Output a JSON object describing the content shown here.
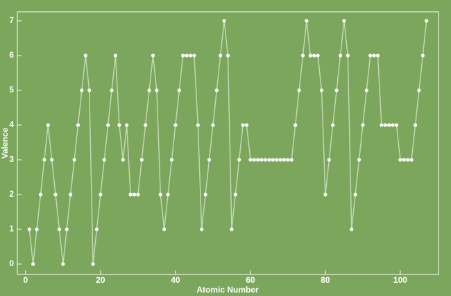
{
  "chart_data": {
    "type": "line",
    "x_label": "Atomic Number",
    "y_label": "Valence",
    "x": [
      1,
      2,
      3,
      4,
      5,
      6,
      7,
      8,
      9,
      10,
      11,
      12,
      13,
      14,
      15,
      16,
      17,
      18,
      19,
      20,
      21,
      22,
      23,
      24,
      25,
      26,
      27,
      28,
      29,
      30,
      31,
      32,
      33,
      34,
      35,
      36,
      37,
      38,
      39,
      40,
      41,
      42,
      43,
      44,
      45,
      46,
      47,
      48,
      49,
      50,
      51,
      52,
      53,
      54,
      55,
      56,
      57,
      58,
      59,
      60,
      61,
      62,
      63,
      64,
      65,
      66,
      67,
      68,
      69,
      70,
      71,
      72,
      73,
      74,
      75,
      76,
      77,
      78,
      79,
      80,
      81,
      82,
      83,
      84,
      85,
      86,
      87,
      88,
      89,
      90,
      91,
      92,
      93,
      94,
      95,
      96,
      97,
      98,
      99,
      100,
      101,
      102,
      103,
      104,
      105,
      106,
      107
    ],
    "values": [
      1,
      0,
      1,
      2,
      3,
      4,
      3,
      2,
      1,
      0,
      1,
      2,
      3,
      4,
      5,
      6,
      5,
      0,
      1,
      2,
      3,
      4,
      5,
      6,
      4,
      3,
      4,
      2,
      2,
      2,
      3,
      4,
      5,
      6,
      5,
      2,
      1,
      2,
      3,
      4,
      5,
      6,
      6,
      6,
      6,
      4,
      1,
      2,
      3,
      4,
      5,
      6,
      7,
      6,
      1,
      2,
      3,
      4,
      4,
      3,
      3,
      3,
      3,
      3,
      3,
      3,
      3,
      3,
      3,
      3,
      3,
      4,
      5,
      6,
      7,
      6,
      6,
      6,
      5,
      2,
      3,
      4,
      5,
      6,
      7,
      6,
      1,
      2,
      3,
      4,
      5,
      6,
      6,
      6,
      4,
      4,
      4,
      4,
      4,
      3,
      3,
      3,
      3,
      4,
      5,
      6,
      7
    ],
    "color": "#ffffff",
    "xlim": [
      -2.2,
      110.2
    ],
    "ylim": [
      -0.3,
      7.26
    ],
    "xticks": [
      0,
      20,
      40,
      60,
      80,
      100
    ],
    "yticks": [
      0,
      1,
      2,
      3,
      4,
      5,
      6,
      7
    ]
  }
}
